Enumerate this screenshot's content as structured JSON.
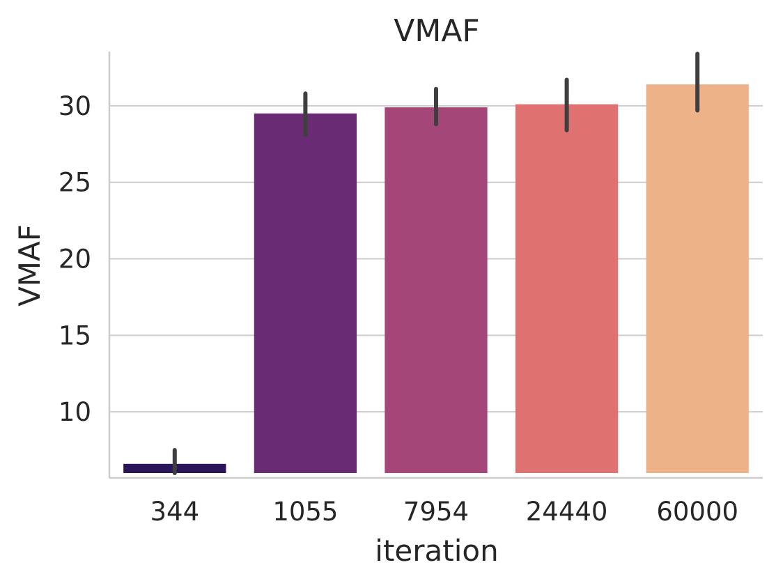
{
  "chart_data": {
    "type": "bar",
    "title": "VMAF",
    "xlabel": "iteration",
    "ylabel": "VMAF",
    "categories": [
      "344",
      "1055",
      "7954",
      "24440",
      "60000"
    ],
    "values": [
      6.6,
      29.5,
      29.9,
      30.1,
      31.4
    ],
    "error_low": [
      6.0,
      28.1,
      28.8,
      28.4,
      29.7
    ],
    "error_high": [
      7.5,
      30.8,
      31.1,
      31.7,
      33.4
    ],
    "colors": [
      "#2b1659",
      "#6a2b75",
      "#a54678",
      "#df7170",
      "#eeb288"
    ],
    "ylim": [
      6.0,
      33.5
    ],
    "yticks": [
      10,
      15,
      20,
      25,
      30
    ],
    "grid": "horizontal"
  }
}
